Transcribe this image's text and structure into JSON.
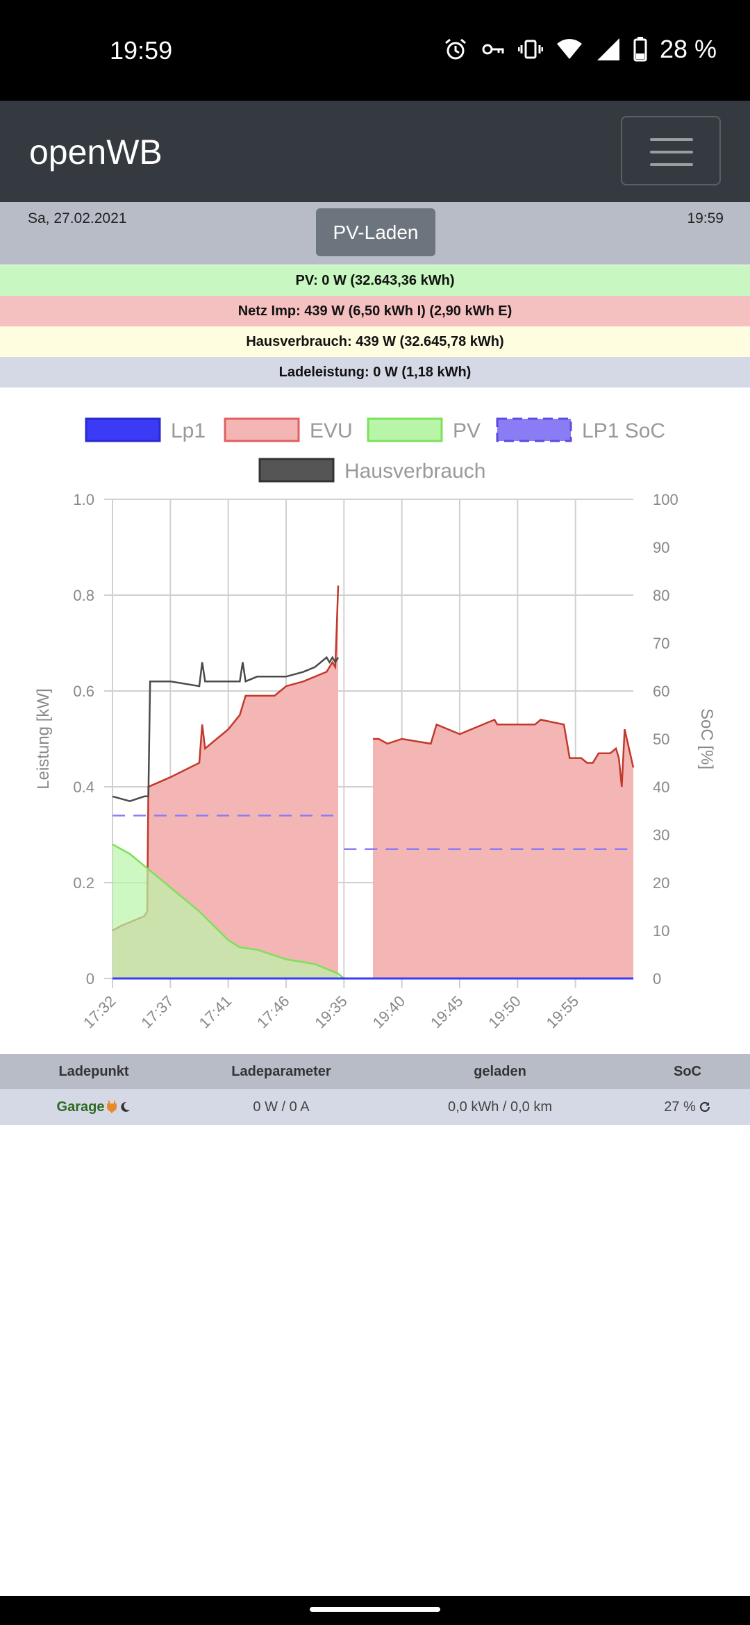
{
  "status_bar": {
    "time": "19:59",
    "battery": "28 %",
    "icons": [
      "alarm-icon",
      "key-icon",
      "vibrate-icon",
      "wifi-icon",
      "signal-icon",
      "battery-icon"
    ]
  },
  "navbar": {
    "brand": "openWB",
    "menu_icon": "hamburger-icon"
  },
  "info": {
    "date": "Sa, 27.02.2021",
    "time": "19:59",
    "mode_button": "PV-Laden"
  },
  "summary": {
    "pv": "PV: 0 W (32.643,36 kWh)",
    "netz": "Netz Imp: 439 W (6,50 kWh I) (2,90 kWh E)",
    "haus": "Hausverbrauch: 439 W (32.645,78 kWh)",
    "lade": "Ladeleistung: 0 W (1,18 kWh)"
  },
  "colors": {
    "summary_pv": "#c9f7c1",
    "summary_netz": "#f5c0c0",
    "summary_haus": "#fefde0",
    "summary_lade": "#d5d9e6",
    "lp1": "#3b3bf5",
    "evu_fill": "#f4b5b5",
    "evu_line": "#c0392b",
    "pv_fill": "#b9f5a8",
    "pv_line": "#7de05a",
    "soc": "#8a7cf5",
    "haus": "#4a4a4a"
  },
  "chart_data": {
    "type": "area",
    "legend": [
      "Lp1",
      "EVU",
      "PV",
      "LP1 SoC",
      "Hausverbrauch"
    ],
    "legend_position": "top",
    "ylabel_left": "Leistung [kW]",
    "ylabel_right": "SoC [%]",
    "yticks_left": [
      "0",
      "0.2",
      "0.4",
      "0.6",
      "0.8",
      "1.0"
    ],
    "yticks_right": [
      "0",
      "10",
      "20",
      "30",
      "40",
      "50",
      "60",
      "70",
      "80",
      "90",
      "100"
    ],
    "ylim_left": [
      0,
      1.0
    ],
    "ylim_right": [
      0,
      100
    ],
    "x_labels": [
      "17:32",
      "17:37",
      "17:41",
      "17:46",
      "19:35",
      "19:40",
      "19:45",
      "19:50",
      "19:55"
    ],
    "grid": true,
    "series": [
      {
        "name": "Lp1",
        "x": [
          0,
          9
        ],
        "values": [
          0,
          0
        ]
      },
      {
        "name": "EVU",
        "x": [
          0,
          0.15,
          0.55,
          0.6,
          0.62,
          1.0,
          1.5,
          1.55,
          1.6,
          2.0,
          2.2,
          2.3,
          2.8,
          3.0,
          3.3,
          3.7,
          3.75,
          3.8,
          3.85,
          3.9,
          4.0,
          4.5,
          4.55,
          4.6,
          4.75,
          5.0,
          5.5,
          5.6,
          6.0,
          6.6,
          6.65,
          7.0,
          7.3,
          7.4,
          7.8,
          7.9,
          8.1,
          8.2,
          8.25,
          8.3,
          8.35,
          8.4,
          8.5,
          8.6,
          8.7,
          8.75,
          8.8,
          8.85,
          9.0
        ],
        "values": [
          0.1,
          0.11,
          0.13,
          0.14,
          0.4,
          0.42,
          0.45,
          0.53,
          0.48,
          0.52,
          0.55,
          0.59,
          0.59,
          0.61,
          0.62,
          0.64,
          0.65,
          0.66,
          0.65,
          0.82,
          null,
          0.5,
          0.5,
          0.5,
          0.49,
          0.5,
          0.49,
          0.53,
          0.51,
          0.54,
          0.53,
          0.53,
          0.53,
          0.54,
          0.53,
          0.46,
          0.46,
          0.45,
          0.45,
          0.45,
          0.46,
          0.47,
          0.47,
          0.47,
          0.48,
          0.46,
          0.4,
          0.52,
          0.44
        ]
      },
      {
        "name": "PV",
        "x": [
          0,
          0.3,
          0.6,
          1.0,
          1.5,
          2.0,
          2.2,
          2.5,
          3.0,
          3.5,
          3.9,
          4.0
        ],
        "values": [
          0.28,
          0.26,
          0.23,
          0.19,
          0.14,
          0.08,
          0.065,
          0.06,
          0.04,
          0.03,
          0.01,
          0.0
        ]
      },
      {
        "name": "LP1 SoC",
        "x": [
          0,
          3.9,
          4.0,
          8.9
        ],
        "values": [
          34,
          34,
          27,
          27
        ]
      },
      {
        "name": "Hausverbrauch",
        "x": [
          0,
          0.3,
          0.55,
          0.62,
          0.65,
          1.0,
          1.5,
          1.55,
          1.6,
          2.0,
          2.2,
          2.25,
          2.3,
          2.5,
          3.0,
          3.3,
          3.5,
          3.7,
          3.75,
          3.8,
          3.85,
          3.9
        ],
        "values": [
          0.38,
          0.37,
          0.38,
          0.38,
          0.62,
          0.62,
          0.61,
          0.66,
          0.62,
          0.62,
          0.62,
          0.66,
          0.62,
          0.63,
          0.63,
          0.64,
          0.65,
          0.67,
          0.66,
          0.67,
          0.66,
          0.67
        ]
      }
    ]
  },
  "table": {
    "headers": [
      "Ladepunkt",
      "Ladeparameter",
      "geladen",
      "SoC"
    ],
    "rows": [
      {
        "name": "Garage",
        "params": "0 W / 0 A",
        "charged": "0,0 kWh / 0,0 km",
        "soc": "27 %"
      }
    ]
  }
}
